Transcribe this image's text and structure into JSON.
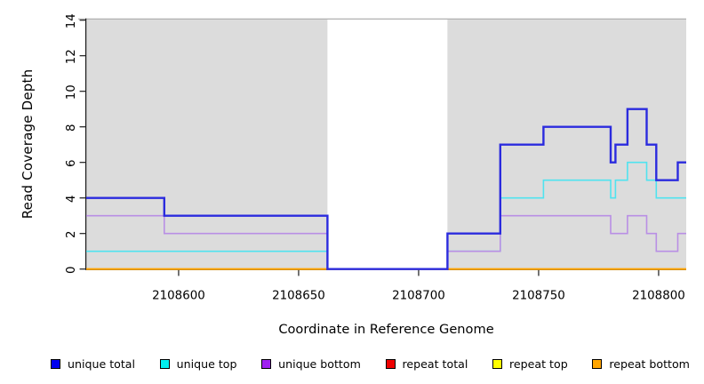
{
  "chart_data": {
    "type": "line",
    "subtype": "step-post",
    "title": "",
    "xlabel": "Coordinate in Reference Genome",
    "ylabel": "Read Coverage Depth",
    "xlim": [
      2108561.5,
      2108811.5
    ],
    "ylim": [
      0,
      14
    ],
    "x_ticks": [
      2108600,
      2108650,
      2108700,
      2108750,
      2108800
    ],
    "y_ticks": [
      0,
      2,
      4,
      6,
      8,
      10,
      12,
      14
    ],
    "grid": false,
    "plot_background": "#dcdcdc",
    "highlight_band": {
      "x_start": 2108662,
      "x_end": 2108712,
      "color": "#ffffff"
    },
    "legend_position": "bottom",
    "draw_order": [
      "repeat total",
      "repeat top",
      "repeat bottom",
      "unique top",
      "unique bottom",
      "unique total"
    ],
    "series": [
      {
        "name": "unique total",
        "legend_color": "#0000EE",
        "line_color": "#2B2BDE",
        "line_width": 2.4,
        "points": [
          [
            2108561.5,
            4
          ],
          [
            2108594,
            3
          ],
          [
            2108662,
            0
          ],
          [
            2108712,
            2
          ],
          [
            2108734,
            7
          ],
          [
            2108752,
            8
          ],
          [
            2108780,
            6
          ],
          [
            2108782,
            7
          ],
          [
            2108787,
            9
          ],
          [
            2108795,
            7
          ],
          [
            2108799,
            5
          ],
          [
            2108808,
            6
          ]
        ]
      },
      {
        "name": "unique top",
        "legend_color": "#00EEEE",
        "line_color": "#50E3EF",
        "line_width": 1.6,
        "points": [
          [
            2108561.5,
            1
          ],
          [
            2108662,
            0
          ],
          [
            2108712,
            1
          ],
          [
            2108734,
            4
          ],
          [
            2108752,
            5
          ],
          [
            2108780,
            4
          ],
          [
            2108782,
            5
          ],
          [
            2108787,
            6
          ],
          [
            2108795,
            5
          ],
          [
            2108799,
            4
          ]
        ]
      },
      {
        "name": "unique bottom",
        "legend_color": "#A020F0",
        "line_color": "#B98FE5",
        "line_width": 1.6,
        "points": [
          [
            2108561.5,
            3
          ],
          [
            2108594,
            2
          ],
          [
            2108662,
            0
          ],
          [
            2108712,
            1
          ],
          [
            2108734,
            3
          ],
          [
            2108780,
            2
          ],
          [
            2108787,
            3
          ],
          [
            2108795,
            2
          ],
          [
            2108799,
            1
          ],
          [
            2108808,
            2
          ]
        ]
      },
      {
        "name": "repeat total",
        "legend_color": "#EE0000",
        "line_color": "#EE0000",
        "line_width": 1.6,
        "points": [
          [
            2108561.5,
            0
          ]
        ]
      },
      {
        "name": "repeat top",
        "legend_color": "#FFFF00",
        "line_color": "#FFFF00",
        "line_width": 1.6,
        "points": [
          [
            2108561.5,
            0
          ]
        ]
      },
      {
        "name": "repeat bottom",
        "legend_color": "#FFA500",
        "line_color": "#FFA500",
        "line_width": 2,
        "points": [
          [
            2108561.5,
            0
          ]
        ]
      }
    ]
  }
}
